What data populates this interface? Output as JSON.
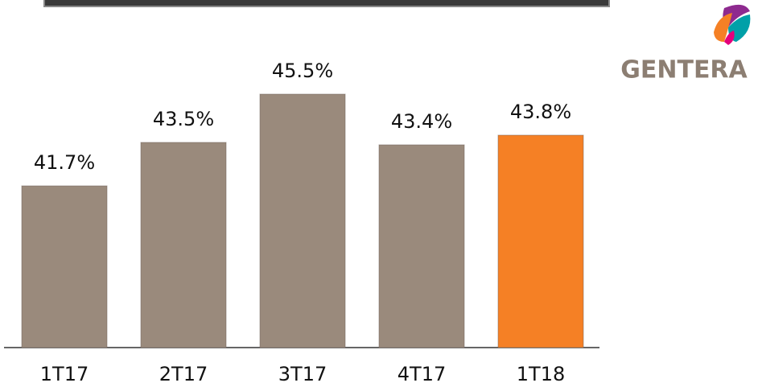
{
  "chart_data": {
    "type": "bar",
    "categories": [
      "1T17",
      "2T17",
      "3T17",
      "4T17",
      "1T18"
    ],
    "values": [
      41.7,
      43.5,
      45.5,
      43.4,
      43.8
    ],
    "value_labels": [
      "41.7%",
      "43.5%",
      "45.5%",
      "43.4%",
      "43.8%"
    ],
    "colors": [
      "#9a8a7c",
      "#9a8a7c",
      "#9a8a7c",
      "#9a8a7c",
      "#f58025"
    ],
    "ylim": [
      35,
      47
    ]
  },
  "logo_text": "GENTERA"
}
